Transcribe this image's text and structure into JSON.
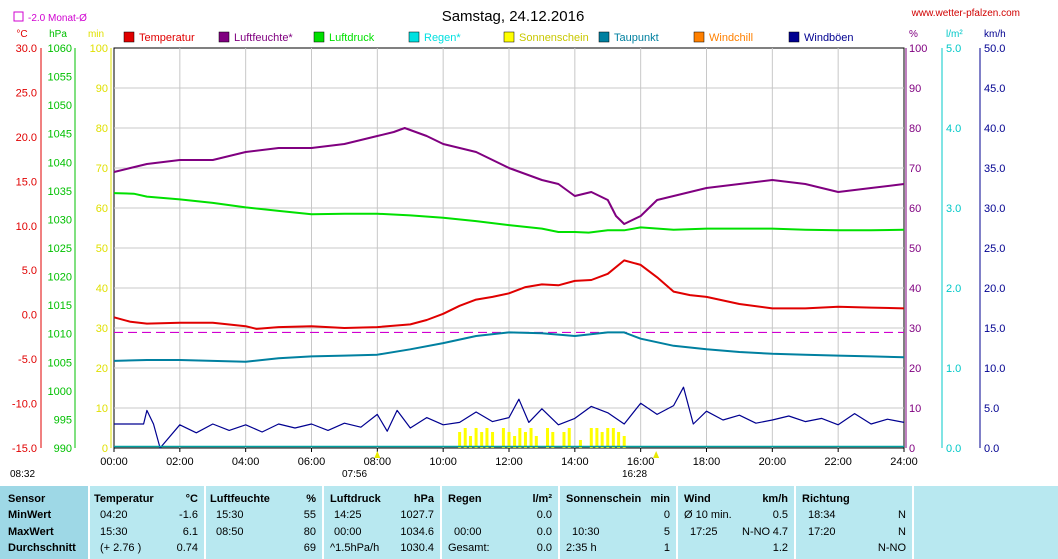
{
  "header": {
    "title": "Samstag, 24.12.2016",
    "website": "www.wetter-pfalzen.com",
    "legend_monat": "-2.0 Monat-Ø"
  },
  "colors": {
    "temperature": "#e00000",
    "humidity": "#800080",
    "pressure": "#00e000",
    "rain": "#00e0e0",
    "sunshine": "#ffff00",
    "dewpoint": "#0080a0",
    "windchill": "#ff8000",
    "gusts": "#000090",
    "wind_avg": "#00a0a0",
    "monat_avg": "#d000d0"
  },
  "chart_data": {
    "type": "line",
    "title": "Samstag, 24.12.2016",
    "x_ticks": [
      "00:00",
      "02:00",
      "04:00",
      "06:00",
      "08:00",
      "10:00",
      "12:00",
      "14:00",
      "16:00",
      "18:00",
      "20:00",
      "22:00",
      "24:00"
    ],
    "x_range_hours": [
      0,
      24
    ],
    "axes": {
      "temperature": {
        "unit": "°C",
        "range": [
          -15,
          30
        ],
        "ticks": [
          "30.0",
          "25.0",
          "20.0",
          "15.0",
          "10.0",
          "5.0",
          "0.0",
          "-5.0",
          "-10.0",
          "-15.0"
        ]
      },
      "pressure": {
        "unit": "hPa",
        "range": [
          990,
          1060
        ],
        "ticks": [
          "1060",
          "1055",
          "1050",
          "1045",
          "1040",
          "1035",
          "1030",
          "1025",
          "1020",
          "1015",
          "1010",
          "1005",
          "1000",
          "995",
          "990"
        ]
      },
      "sunshine_min": {
        "unit": "min",
        "range": [
          0,
          100
        ],
        "ticks": [
          "100",
          "90",
          "80",
          "70",
          "60",
          "50",
          "40",
          "30",
          "20",
          "10",
          "0"
        ]
      },
      "humidity": {
        "unit": "%",
        "range": [
          0,
          100
        ],
        "ticks": [
          "100",
          "90",
          "80",
          "70",
          "60",
          "50",
          "40",
          "30",
          "20",
          "10",
          "0"
        ]
      },
      "rain": {
        "unit": "l/m²",
        "range": [
          0,
          5
        ],
        "ticks": [
          "5.0",
          "4.0",
          "3.0",
          "2.0",
          "1.0",
          "0.0"
        ]
      },
      "wind": {
        "unit": "km/h",
        "range": [
          0,
          50
        ],
        "ticks": [
          "50.0",
          "45.0",
          "40.0",
          "35.0",
          "30.0",
          "25.0",
          "20.0",
          "15.0",
          "10.0",
          "5.0",
          "0.0"
        ]
      }
    },
    "grid": true,
    "legend": [
      "Temperatur",
      "Luftfeuchte*",
      "Luftdruck",
      "Regen*",
      "Sonnenschein",
      "Taupunkt",
      "Windchill",
      "Windböen"
    ],
    "monat_avg_temperature": -2.0,
    "series": [
      {
        "name": "Temperatur",
        "axis": "temperature",
        "x": [
          0,
          0.5,
          1,
          2,
          3,
          4,
          4.33,
          5,
          6,
          7,
          8,
          9,
          9.5,
          10,
          10.5,
          11,
          11.5,
          12,
          12.5,
          13,
          13.5,
          14,
          14.5,
          15,
          15.5,
          16,
          16.5,
          17,
          17.5,
          18,
          19,
          20,
          21,
          22,
          23,
          24
        ],
        "y": [
          -0.3,
          -0.8,
          -1.0,
          -0.9,
          -0.9,
          -1.3,
          -1.6,
          -1.4,
          -1.3,
          -1.5,
          -1.4,
          -1.1,
          -0.6,
          0.1,
          1.0,
          1.7,
          2.0,
          2.4,
          3.1,
          3.4,
          3.3,
          3.8,
          3.9,
          4.6,
          6.1,
          5.6,
          4.2,
          2.6,
          2.2,
          2.0,
          1.2,
          0.7,
          0.7,
          0.9,
          0.8,
          0.7
        ]
      },
      {
        "name": "Luftfeuchte*",
        "axis": "humidity",
        "x": [
          0,
          1,
          2,
          3,
          4,
          5,
          6,
          7,
          8,
          8.5,
          8.83,
          9.5,
          10,
          11,
          12,
          13,
          13.5,
          14,
          14.5,
          15,
          15.25,
          15.5,
          16,
          16.5,
          17,
          18,
          19,
          20,
          21,
          22,
          23,
          24
        ],
        "y": [
          69,
          71,
          72,
          72,
          74,
          75,
          75,
          76,
          78,
          79,
          80,
          78,
          76,
          74,
          70,
          67,
          66,
          63,
          64,
          62,
          58,
          56,
          58,
          62,
          63,
          65,
          66,
          67,
          66,
          64,
          65,
          66
        ]
      },
      {
        "name": "Luftdruck",
        "axis": "pressure",
        "x": [
          0,
          0.6,
          1,
          2,
          3,
          4,
          5,
          6,
          7,
          8,
          9,
          10,
          11,
          12,
          13,
          13.5,
          14,
          14.42,
          15,
          15.5,
          16,
          17,
          18,
          19,
          20,
          21,
          22,
          23,
          24
        ],
        "y": [
          1034.6,
          1034.5,
          1034.0,
          1033.5,
          1032.9,
          1032.1,
          1031.5,
          1030.9,
          1031.0,
          1031.0,
          1030.7,
          1030.3,
          1029.7,
          1029.0,
          1028.4,
          1027.8,
          1027.8,
          1027.7,
          1028.1,
          1028.1,
          1028.6,
          1028.2,
          1028.4,
          1028.4,
          1028.4,
          1028.2,
          1028.1,
          1028.1,
          1028.2
        ]
      },
      {
        "name": "Taupunkt",
        "axis": "temperature",
        "x": [
          0,
          1,
          2,
          3,
          4,
          5,
          6,
          7,
          8,
          9,
          10,
          11,
          12,
          13,
          14,
          15,
          15.5,
          16,
          17,
          18,
          19,
          20,
          21,
          22,
          23,
          24
        ],
        "y": [
          -5.2,
          -5.1,
          -5.1,
          -5.2,
          -5.3,
          -4.9,
          -4.7,
          -4.6,
          -4.5,
          -3.9,
          -3.2,
          -2.4,
          -2.0,
          -2.1,
          -2.4,
          -2.0,
          -2.0,
          -2.7,
          -3.5,
          -3.9,
          -4.2,
          -4.4,
          -4.5,
          -4.6,
          -4.7,
          -4.8
        ]
      },
      {
        "name": "Windböen",
        "axis": "wind",
        "x": [
          0,
          0.9,
          1,
          1.2,
          1.4,
          2,
          2.5,
          3,
          3.5,
          4,
          4.5,
          5,
          5.5,
          6,
          6.5,
          7,
          7.5,
          8,
          8.3,
          8.6,
          9,
          9.5,
          10,
          10.5,
          11,
          11.5,
          12,
          12.3,
          12.6,
          13,
          13.5,
          14,
          14.5,
          15,
          15.5,
          16,
          16.5,
          17,
          17.3,
          17.6,
          18,
          18.5,
          19,
          19.5,
          20,
          20.5,
          21,
          21.5,
          22,
          22.5,
          23,
          23.5,
          24
        ],
        "y": [
          3.0,
          3.0,
          4.7,
          3.0,
          0,
          2.9,
          1.9,
          3.0,
          2.2,
          2.9,
          2.0,
          3.0,
          2.5,
          3.0,
          2.2,
          3.1,
          2.6,
          4.2,
          2.1,
          4.7,
          2.5,
          3.8,
          2.9,
          3.2,
          4.5,
          3.3,
          3.8,
          6.1,
          3.2,
          4.9,
          2.9,
          3.7,
          5.2,
          4.4,
          3.0,
          5.6,
          4.2,
          5.3,
          7.6,
          3.0,
          4.6,
          3.5,
          4.1,
          3.1,
          3.5,
          4.0,
          3.3,
          3.7,
          2.9,
          4.3,
          3.0,
          3.6,
          3.2
        ]
      }
    ],
    "sunshine_minutes": {
      "name": "Sonnenschein",
      "x": [
        10.5,
        10.67,
        10.83,
        11,
        11.17,
        11.33,
        11.5,
        11.83,
        12,
        12.17,
        12.33,
        12.5,
        12.67,
        12.83,
        13.17,
        13.33,
        13.67,
        13.83,
        14.17,
        14.5,
        14.67,
        14.83,
        15,
        15.17,
        15.33,
        15.5
      ],
      "y": [
        4,
        5,
        3,
        5,
        4,
        5,
        4,
        5,
        4,
        3,
        5,
        4,
        5,
        3,
        5,
        4,
        4,
        5,
        2,
        5,
        5,
        4,
        5,
        5,
        4,
        3
      ]
    },
    "min_markers": {
      "temperatur": "04:20",
      "luftdruck": "14:25",
      "luftfeuchte": "15:30"
    },
    "max_markers": {
      "temperatur": "15:30",
      "luftfeuchte": "08:50",
      "luftdruck": "00:00"
    }
  },
  "corner_labels": {
    "left_time": "08:32",
    "mid_time": "07:56",
    "right_time": "16:28"
  },
  "table": {
    "sensor": {
      "header": "Sensor",
      "min": "MinWert",
      "max": "MaxWert",
      "avg": "Durchschnitt"
    },
    "temperatur": {
      "header": "Temperatur",
      "unit": "°C",
      "min_time": "04:20",
      "min_val": "-1.6",
      "max_time": "15:30",
      "max_val": "6.1",
      "avg_note": "(+ 2.76 )",
      "avg_val": "0.74"
    },
    "luftfeuchte": {
      "header": "Luftfeuchte",
      "unit": "%",
      "min_time": "15:30",
      "min_val": "55",
      "max_time": "08:50",
      "max_val": "80",
      "avg_val": "69"
    },
    "luftdruck": {
      "header": "Luftdruck",
      "unit": "hPa",
      "min_time": "14:25",
      "min_val": "1027.7",
      "max_time": "00:00",
      "max_val": "1034.6",
      "avg_note": "^1.5hPa/h",
      "avg_val": "1030.4"
    },
    "regen": {
      "header": "Regen",
      "unit": "l/m²",
      "min_val": "0.0",
      "max_time": "00:00",
      "max_val": "0.0",
      "avg_note": "Gesamt:",
      "avg_val": "0.0"
    },
    "sonnenschein": {
      "header": "Sonnenschein",
      "unit": "min",
      "min_val": "0",
      "max_time": "10:30",
      "max_val": "5",
      "avg_note": "2:35 h",
      "avg_val": "1"
    },
    "wind": {
      "header": "Wind",
      "unit": "km/h",
      "min_note": "Ø 10 min.",
      "min_val": "0.5",
      "max_time": "17:25",
      "max_dir": "N-NO",
      "max_val": "4.7",
      "avg_val": "1.2"
    },
    "richtung": {
      "header": "Richtung",
      "min_time": "18:34",
      "min_val": "N",
      "max_time": "17:20",
      "max_val": "N",
      "avg_val": "N-NO"
    }
  }
}
